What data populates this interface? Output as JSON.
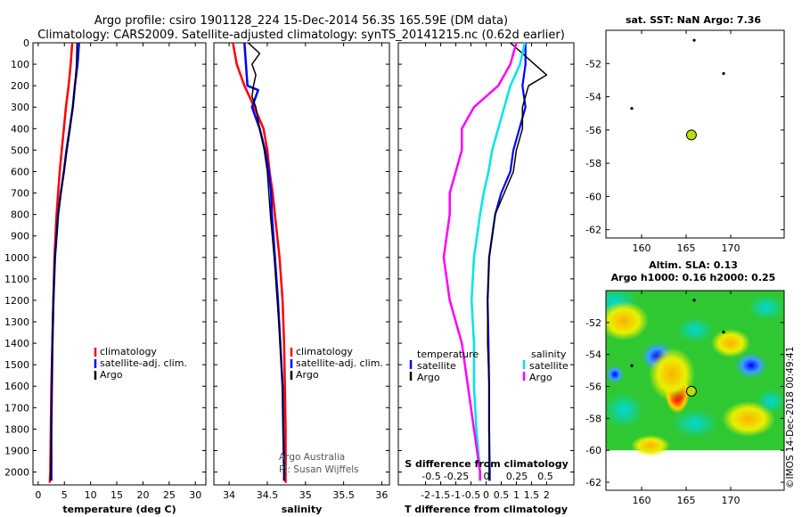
{
  "title_line1": "Argo profile: csiro 1901128_224 15-Dec-2014 56.3S 165.59E (DM data)",
  "title_line2": "Climatology: CARS2009. Satellite-adjusted climatology: synTS_20141215.nc (0.62d earlier)",
  "map_top_title": "sat. SST: NaN Argo: 7.36",
  "map_bottom_title1": "Altim. SLA: 0.13",
  "map_bottom_title2": "Argo h1000: 0.16 h2000: 0.25",
  "credit1": "Argo Australia",
  "credit2": "PI: Susan Wijffels",
  "side_stamp": "©IMOS 14-Dec-2018 00:49:41",
  "colors": {
    "climatology": "#ff0000",
    "satellite": "#0000ff",
    "argo": "#000000",
    "sal_satellite": "#00e5e5",
    "sal_climatology": "#ff00ff",
    "argo_marker": "#b8e000"
  },
  "chart_data": [
    {
      "type": "line",
      "xlabel": "temperature (deg C)",
      "ylabel": "",
      "xlim": [
        -1,
        32
      ],
      "ylim": [
        2060,
        0
      ],
      "xticks": [
        "0",
        "5",
        "10",
        "15",
        "20",
        "25",
        "30"
      ],
      "yticks": [
        "0",
        "100",
        "200",
        "300",
        "400",
        "500",
        "600",
        "700",
        "800",
        "900",
        "1000",
        "1100",
        "1200",
        "1300",
        "1400",
        "1500",
        "1600",
        "1700",
        "1800",
        "1900",
        "2000"
      ],
      "legend": [
        "climatology",
        "satellite-adj. clim.",
        "Argo"
      ],
      "series": [
        {
          "name": "climatology",
          "depth": [
            0,
            100,
            200,
            300,
            400,
            500,
            600,
            700,
            800,
            900,
            1000,
            1200,
            1400,
            1600,
            1800,
            2000,
            2050
          ],
          "values": [
            6.5,
            6.2,
            5.8,
            5.3,
            4.9,
            4.5,
            4.1,
            3.8,
            3.5,
            3.3,
            3.1,
            2.9,
            2.7,
            2.5,
            2.4,
            2.3,
            2.2
          ]
        },
        {
          "name": "satellite-adj. clim.",
          "depth": [
            0,
            100,
            200,
            300,
            400,
            500,
            600,
            700,
            800,
            900,
            1000,
            1200,
            1400,
            1600,
            1800,
            2000,
            2040
          ],
          "values": [
            7.8,
            7.5,
            7.0,
            6.6,
            6.0,
            5.4,
            4.9,
            4.3,
            3.8,
            3.5,
            3.2,
            2.9,
            2.7,
            2.6,
            2.5,
            2.5,
            2.5
          ]
        },
        {
          "name": "Argo",
          "depth": [
            0,
            100,
            200,
            300,
            400,
            500,
            600,
            700,
            800,
            900,
            1000,
            1200,
            1400,
            1600,
            1800,
            2000,
            2040
          ],
          "values": [
            7.4,
            7.3,
            7.0,
            6.6,
            6.1,
            5.5,
            4.9,
            4.3,
            3.8,
            3.5,
            3.2,
            2.9,
            2.7,
            2.6,
            2.5,
            2.4,
            2.4
          ]
        }
      ]
    },
    {
      "type": "line",
      "xlabel": "salinity",
      "xlim": [
        33.8,
        36.1
      ],
      "ylim": [
        2060,
        0
      ],
      "xticks": [
        "34",
        "34.5",
        "35",
        "35.5",
        "36"
      ],
      "legend": [
        "climatology",
        "satellite-adj. clim.",
        "Argo"
      ],
      "series": [
        {
          "name": "climatology",
          "depth": [
            0,
            100,
            200,
            300,
            400,
            500,
            600,
            700,
            800,
            900,
            1000,
            1200,
            1400,
            1600,
            1800,
            2000,
            2050
          ],
          "values": [
            34.05,
            34.1,
            34.2,
            34.33,
            34.45,
            34.5,
            34.53,
            34.57,
            34.6,
            34.63,
            34.66,
            34.7,
            34.72,
            34.73,
            34.74,
            34.74,
            34.74
          ]
        },
        {
          "name": "satellite-adj. clim.",
          "depth": [
            0,
            100,
            200,
            220,
            300,
            400,
            500,
            600,
            700,
            800,
            1000,
            1200,
            1400,
            1600,
            1800,
            2000,
            2040
          ],
          "values": [
            34.2,
            34.22,
            34.24,
            34.38,
            34.3,
            34.4,
            34.47,
            34.52,
            34.55,
            34.56,
            34.6,
            34.64,
            34.67,
            34.7,
            34.71,
            34.72,
            34.72
          ]
        },
        {
          "name": "Argo",
          "depth": [
            0,
            50,
            100,
            150,
            200,
            250,
            300,
            400,
            500,
            600,
            700,
            800,
            1000,
            1200,
            1400,
            1600,
            1800,
            2000,
            2040
          ],
          "values": [
            34.25,
            34.4,
            34.3,
            34.35,
            34.32,
            34.3,
            34.35,
            34.4,
            34.46,
            34.5,
            34.52,
            34.54,
            34.59,
            34.63,
            34.67,
            34.7,
            34.71,
            34.72,
            34.72
          ]
        }
      ]
    },
    {
      "type": "line",
      "xlabel": "T difference from climatology",
      "xlabel2": "S difference from climatology",
      "xlim": [
        -2.9,
        2.9
      ],
      "ylim": [
        2060,
        0
      ],
      "xticks": [
        "-2",
        "-1.5",
        "-1",
        "-0.5",
        "0",
        "0.5",
        "1",
        "1.5",
        "2"
      ],
      "xticks2": [
        "-0.5",
        "-0.25",
        "0",
        "0.25",
        "0.5"
      ],
      "legend": [
        "temperature",
        "satellite",
        "Argo",
        "salinity",
        "satellite",
        "Argo"
      ],
      "series": [
        {
          "name": "satellite",
          "depth": [
            0,
            100,
            200,
            300,
            400,
            500,
            600,
            700,
            800,
            900,
            1000,
            1200,
            1400,
            1600,
            1800,
            2000,
            2040
          ],
          "values": [
            1.3,
            1.3,
            1.2,
            1.3,
            1.1,
            0.9,
            0.8,
            0.5,
            0.3,
            0.2,
            0.1,
            0.05,
            0.08,
            0.1,
            0.1,
            0.12,
            0.12
          ]
        },
        {
          "name": "Argo",
          "depth": [
            0,
            50,
            100,
            150,
            200,
            300,
            400,
            500,
            600,
            700,
            800,
            900,
            1000,
            1200,
            1400,
            1600,
            1800,
            2000,
            2040
          ],
          "values": [
            0.8,
            1.2,
            1.6,
            2.0,
            1.4,
            1.2,
            1.2,
            1.0,
            0.9,
            0.6,
            0.3,
            0.2,
            0.1,
            0.05,
            0.05,
            0.1,
            0.1,
            0.1,
            0.1
          ]
        },
        {
          "name": "satellite",
          "depth": [
            0,
            100,
            200,
            300,
            400,
            500,
            600,
            700,
            800,
            1000,
            1200,
            1400,
            1600,
            1800,
            2000,
            2040
          ],
          "values": [
            0.32,
            0.28,
            0.2,
            0.15,
            0.1,
            0.05,
            0.02,
            -0.02,
            -0.05,
            -0.1,
            -0.12,
            -0.1,
            -0.1,
            -0.08,
            -0.05,
            -0.05
          ]
        },
        {
          "name": "Argo",
          "depth": [
            0,
            100,
            200,
            300,
            400,
            500,
            600,
            700,
            800,
            1000,
            1200,
            1400,
            1600,
            1800,
            2000,
            2040
          ],
          "values": [
            0.25,
            0.2,
            0.1,
            -0.1,
            -0.2,
            -0.2,
            -0.25,
            -0.3,
            -0.3,
            -0.35,
            -0.3,
            -0.2,
            -0.15,
            -0.1,
            -0.05,
            -0.05
          ]
        }
      ]
    },
    {
      "type": "scatter",
      "xlim": [
        156,
        176
      ],
      "ylim": [
        -62.5,
        -50
      ],
      "xticks": [
        "160",
        "165",
        "170"
      ],
      "yticks": [
        "-52",
        "-54",
        "-56",
        "-58",
        "-60",
        "-62"
      ],
      "points": [
        {
          "x": 165.59,
          "y": -56.3
        }
      ]
    },
    {
      "type": "heatmap",
      "xlim": [
        156,
        176
      ],
      "ylim": [
        -62.5,
        -50
      ],
      "xticks": [
        "160",
        "165",
        "170"
      ],
      "yticks": [
        "-52",
        "-54",
        "-56",
        "-58",
        "-60",
        "-62"
      ],
      "points": [
        {
          "x": 165.59,
          "y": -56.3
        }
      ]
    }
  ]
}
